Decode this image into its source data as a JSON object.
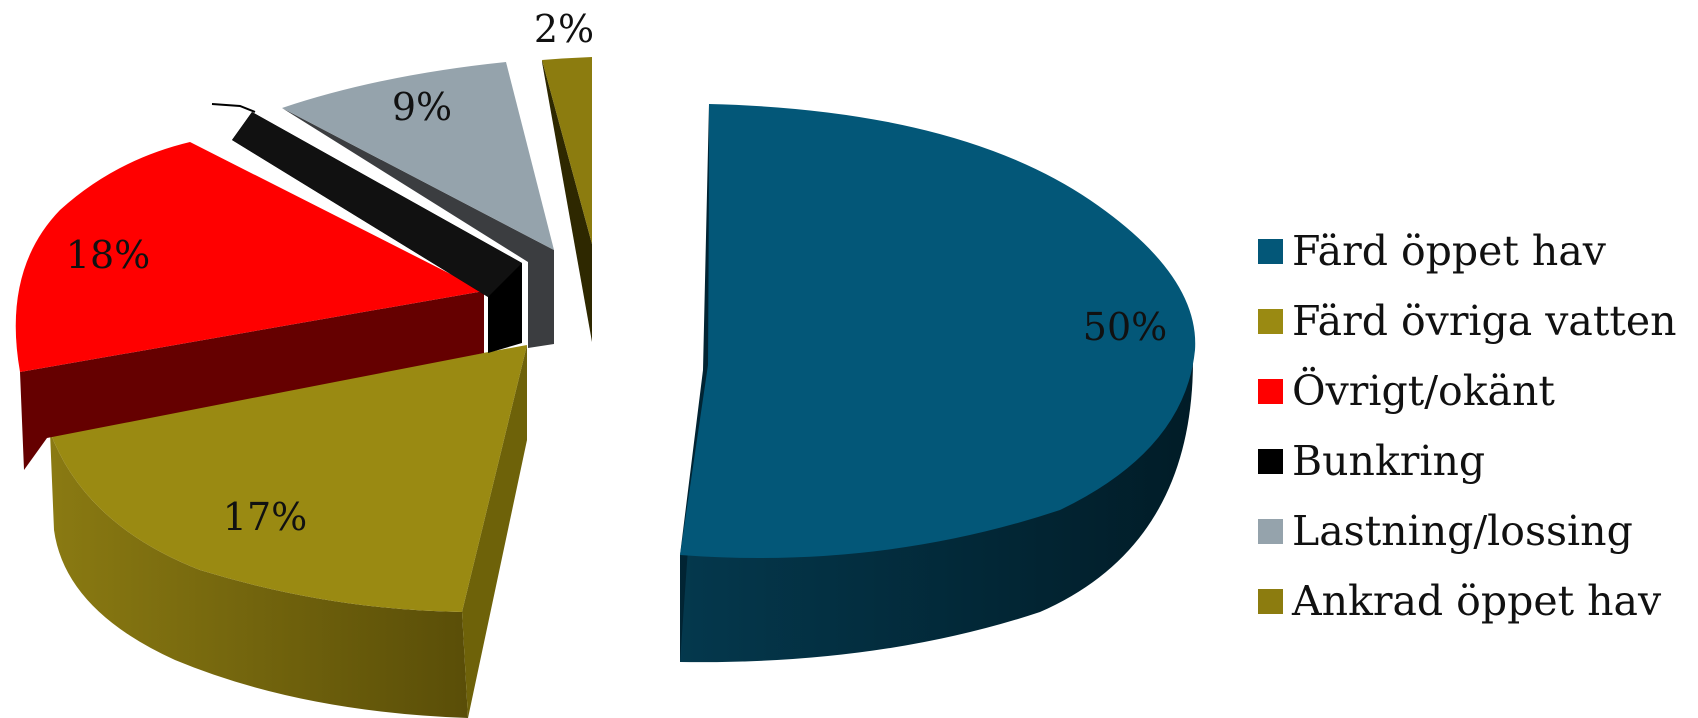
{
  "chart_data": {
    "type": "pie",
    "style": "3d-exploded",
    "legend_position": "right",
    "slices": [
      {
        "label": "Färd öppet hav",
        "value": 50,
        "value_label": "50%",
        "color": "#035778"
      },
      {
        "label": "Färd övriga vatten",
        "value": 17,
        "value_label": "17%",
        "color": "#9A8A12"
      },
      {
        "label": "Övrigt/okänt",
        "value": 18,
        "value_label": "18%",
        "color": "#FF0000"
      },
      {
        "label": "Bunkring",
        "value": 4,
        "value_label": "",
        "color": "#000000"
      },
      {
        "label": "Lastning/lossing",
        "value": 9,
        "value_label": "9%",
        "color": "#95A3AC"
      },
      {
        "label": "Ankrad öppet hav",
        "value": 2,
        "value_label": "2%",
        "color": "#8C7C0F"
      }
    ]
  }
}
